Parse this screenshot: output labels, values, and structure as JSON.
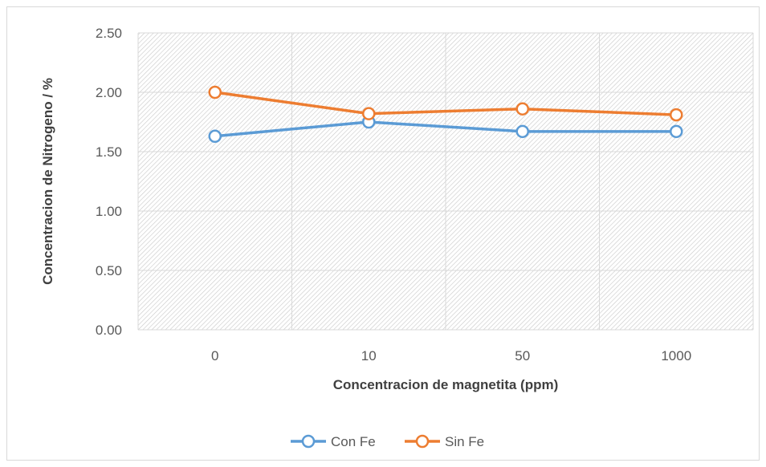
{
  "chart_data": {
    "type": "line",
    "title": "",
    "xlabel": "Concentracion de magnetita (ppm)",
    "ylabel": "Concentracion de Nitrogeno / %",
    "categories": [
      "0",
      "10",
      "50",
      "1000"
    ],
    "ylim": [
      0,
      2.5
    ],
    "yticks": [
      "0.00",
      "0.50",
      "1.00",
      "1.50",
      "2.00",
      "2.50"
    ],
    "grid": true,
    "legend_position": "bottom",
    "series": [
      {
        "name": "Con Fe",
        "values": [
          1.63,
          1.75,
          1.67,
          1.67
        ],
        "color": "#5b9bd5",
        "marker": "open-circle"
      },
      {
        "name": "Sin Fe",
        "values": [
          2.0,
          1.82,
          1.86,
          1.81
        ],
        "color": "#ed7d31",
        "marker": "open-circle"
      }
    ]
  }
}
